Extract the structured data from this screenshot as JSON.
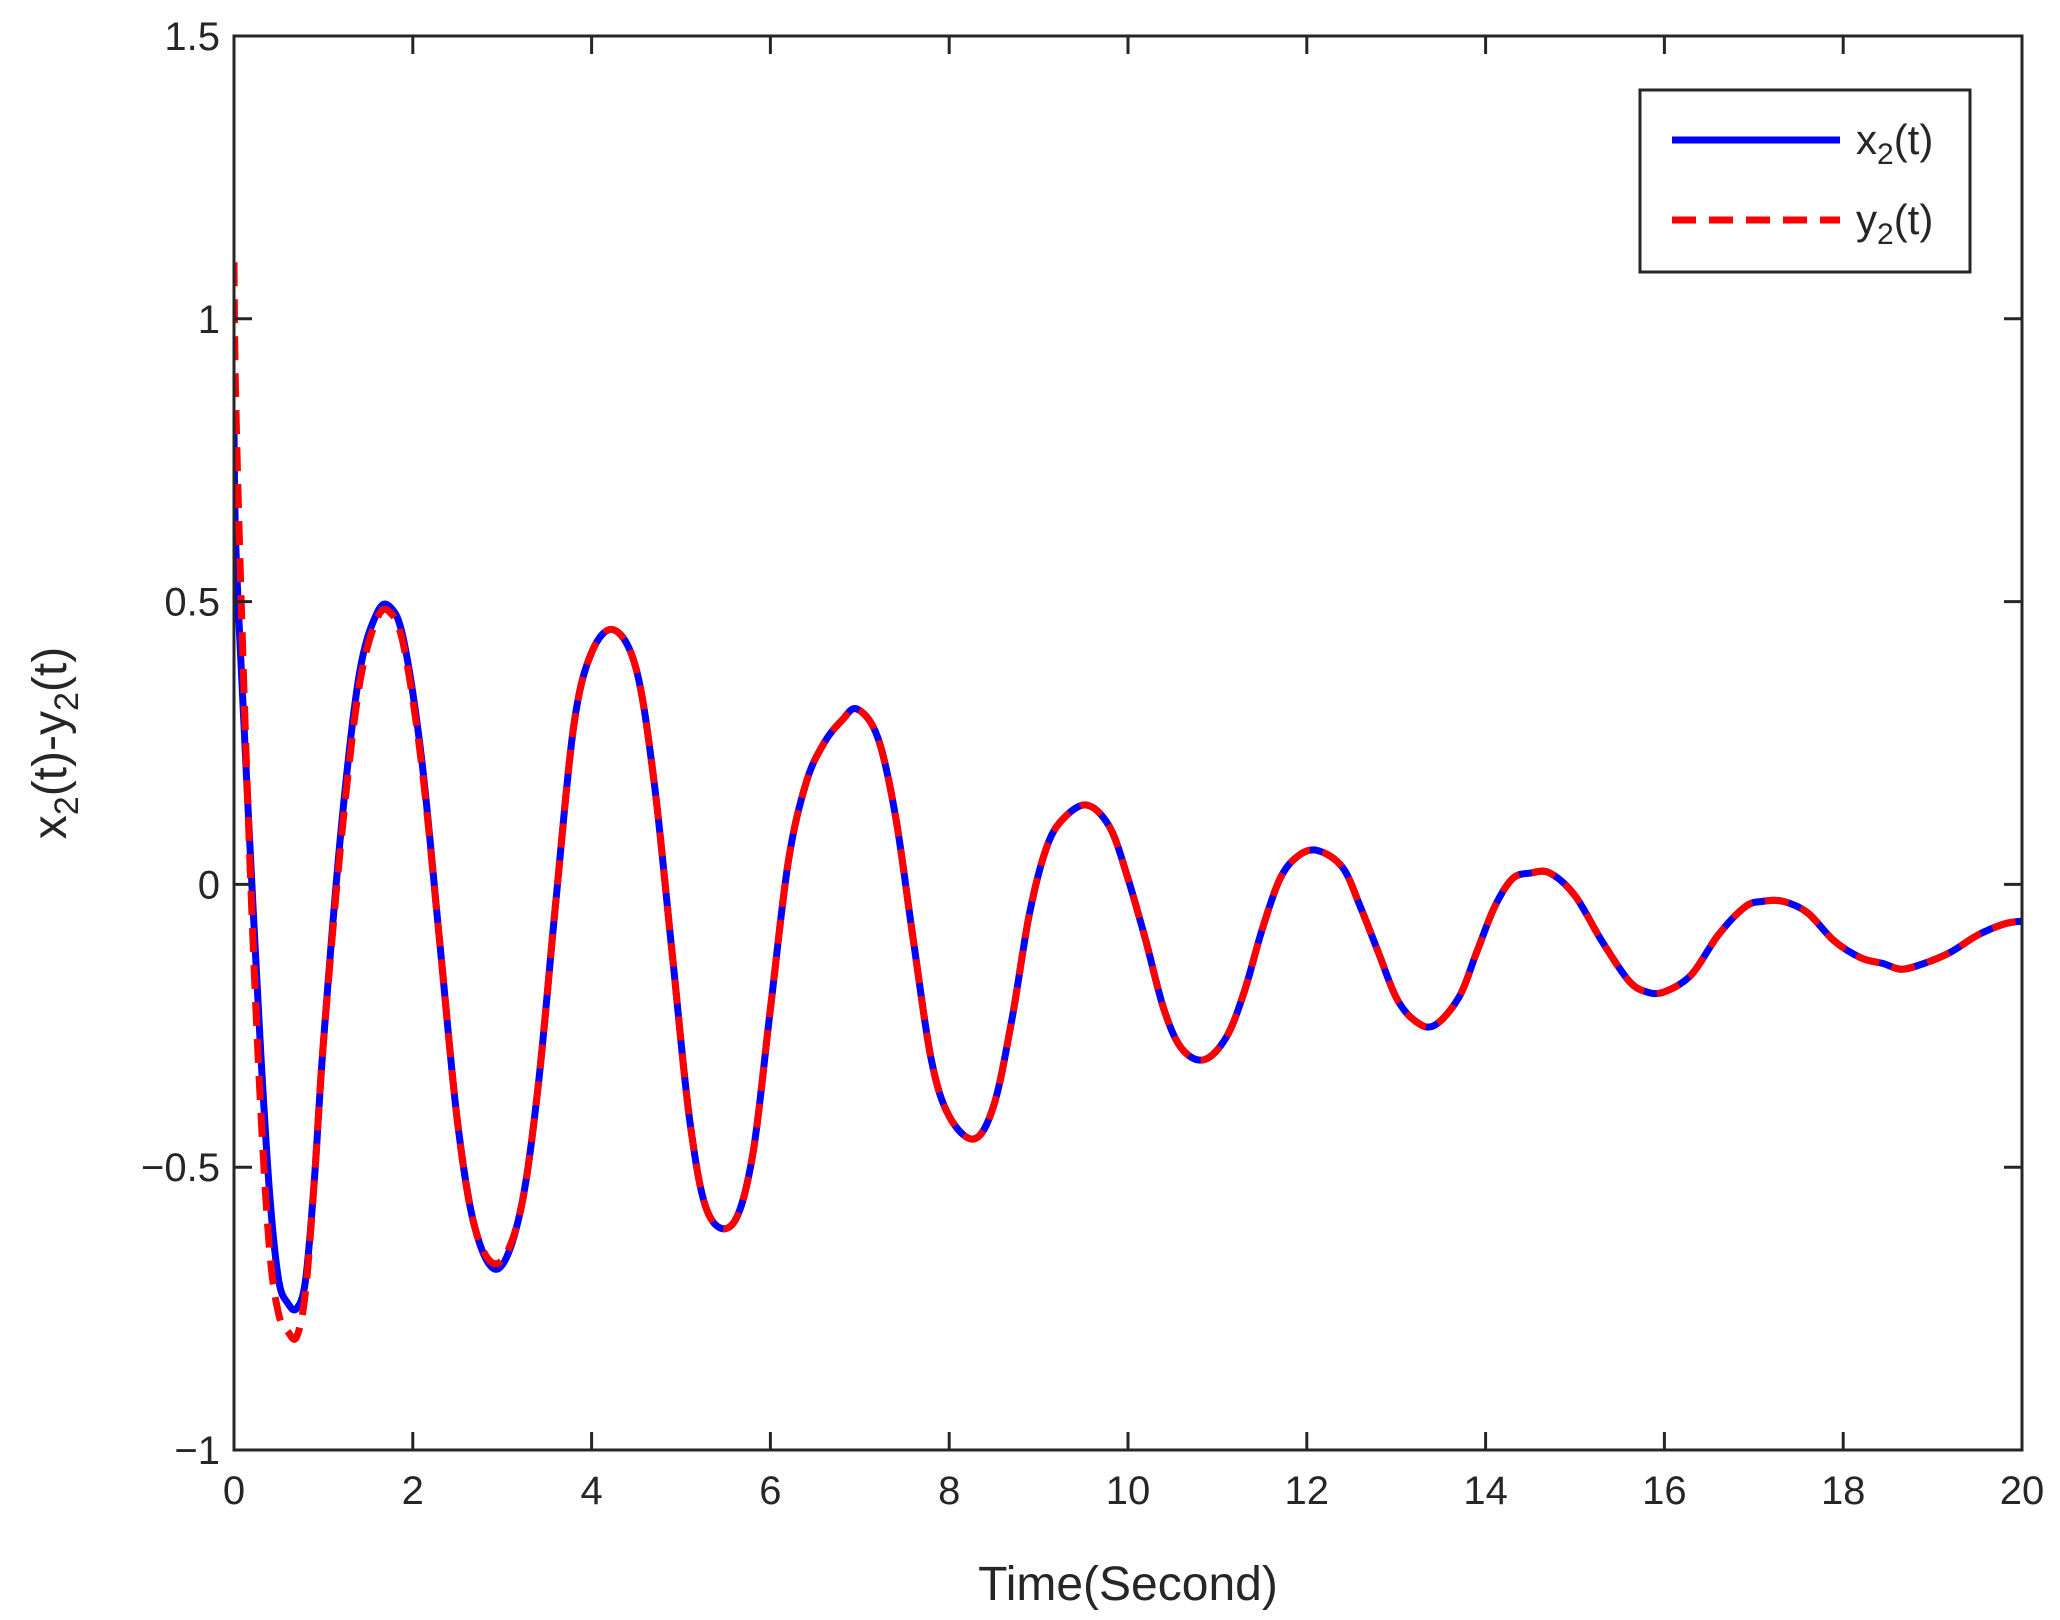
{
  "chart_data": {
    "type": "line",
    "title": "",
    "xlabel": "Time(Second)",
    "ylabel": {
      "base": "x",
      "sub1": "2",
      "mid": "(t)-y",
      "sub2": "2",
      "tail": "(t)"
    },
    "xlim": [
      0,
      20
    ],
    "ylim": [
      -1,
      1.5
    ],
    "xticks": [
      "0",
      "2",
      "4",
      "6",
      "8",
      "10",
      "12",
      "14",
      "16",
      "18",
      "20"
    ],
    "yticks": [
      "−1",
      "−0.5",
      "0",
      "0.5",
      "1",
      "1.5"
    ],
    "grid": false,
    "legend_position": "top-right",
    "series": [
      {
        "name": {
          "base": "x",
          "sub": "2",
          "tail": "(t)"
        },
        "color": "#0000ff",
        "style": "solid",
        "x": [
          0,
          0.02,
          0.1,
          0.2,
          0.3,
          0.4,
          0.5,
          0.6,
          0.7,
          0.8,
          0.9,
          1.0,
          1.2,
          1.4,
          1.6,
          1.75,
          1.9,
          2.1,
          2.3,
          2.5,
          2.7,
          2.95,
          3.2,
          3.4,
          3.6,
          3.8,
          4.0,
          4.25,
          4.5,
          4.7,
          4.9,
          5.1,
          5.3,
          5.58,
          5.8,
          6.0,
          6.2,
          6.4,
          6.6,
          6.8,
          6.97,
          7.2,
          7.4,
          7.6,
          7.8,
          8.0,
          8.28,
          8.5,
          8.7,
          8.9,
          9.1,
          9.3,
          9.55,
          9.8,
          10.0,
          10.2,
          10.4,
          10.6,
          10.85,
          11.1,
          11.3,
          11.5,
          11.7,
          11.9,
          12.12,
          12.4,
          12.6,
          12.8,
          13.0,
          13.2,
          13.42,
          13.7,
          13.9,
          14.1,
          14.3,
          14.5,
          14.72,
          15.0,
          15.3,
          15.6,
          15.8,
          16.0,
          16.3,
          16.6,
          16.9,
          17.1,
          17.33,
          17.6,
          17.9,
          18.2,
          18.45,
          18.65,
          18.9,
          19.2,
          19.5,
          19.8,
          20.0
        ],
        "y": [
          0.8,
          0.6,
          0.32,
          0.0,
          -0.3,
          -0.55,
          -0.7,
          -0.74,
          -0.75,
          -0.7,
          -0.52,
          -0.28,
          0.1,
          0.37,
          0.48,
          0.49,
          0.43,
          0.22,
          -0.1,
          -0.42,
          -0.61,
          -0.68,
          -0.58,
          -0.36,
          -0.03,
          0.28,
          0.41,
          0.45,
          0.38,
          0.18,
          -0.12,
          -0.42,
          -0.58,
          -0.6,
          -0.48,
          -0.22,
          0.04,
          0.18,
          0.25,
          0.29,
          0.31,
          0.26,
          0.12,
          -0.1,
          -0.31,
          -0.41,
          -0.45,
          -0.39,
          -0.24,
          -0.05,
          0.07,
          0.12,
          0.14,
          0.1,
          0.01,
          -0.1,
          -0.22,
          -0.29,
          -0.31,
          -0.27,
          -0.19,
          -0.08,
          0.01,
          0.05,
          0.06,
          0.03,
          -0.04,
          -0.12,
          -0.2,
          -0.24,
          -0.25,
          -0.2,
          -0.12,
          -0.04,
          0.01,
          0.02,
          0.02,
          -0.02,
          -0.1,
          -0.17,
          -0.19,
          -0.19,
          -0.16,
          -0.09,
          -0.04,
          -0.03,
          -0.03,
          -0.05,
          -0.1,
          -0.13,
          -0.14,
          -0.15,
          -0.14,
          -0.12,
          -0.09,
          -0.07,
          -0.065
        ]
      },
      {
        "name": {
          "base": "y",
          "sub": "2",
          "tail": "(t)"
        },
        "color": "#ff0000",
        "style": "dashed",
        "x": [
          0,
          0.02,
          0.1,
          0.2,
          0.3,
          0.4,
          0.5,
          0.6,
          0.7,
          0.8,
          0.9,
          1.0,
          1.2,
          1.4,
          1.6,
          1.75,
          1.9,
          2.1,
          2.3,
          2.5,
          2.7,
          2.95,
          3.2,
          3.4,
          3.6,
          3.8,
          4.0,
          4.25,
          4.5,
          4.7,
          4.9,
          5.1,
          5.3,
          5.58,
          5.8,
          6.0,
          6.2,
          6.4,
          6.6,
          6.8,
          6.97,
          7.2,
          7.4,
          7.6,
          7.8,
          8.0,
          8.28,
          8.5,
          8.7,
          8.9,
          9.1,
          9.3,
          9.55,
          9.8,
          10.0,
          10.2,
          10.4,
          10.6,
          10.85,
          11.1,
          11.3,
          11.5,
          11.7,
          11.9,
          12.12,
          12.4,
          12.6,
          12.8,
          13.0,
          13.2,
          13.42,
          13.7,
          13.9,
          14.1,
          14.3,
          14.5,
          14.72,
          15.0,
          15.3,
          15.6,
          15.8,
          16.0,
          16.3,
          16.6,
          16.9,
          17.1,
          17.33,
          17.6,
          17.9,
          18.2,
          18.45,
          18.65,
          18.9,
          19.2,
          19.5,
          19.8,
          20.0
        ],
        "y": [
          1.1,
          0.85,
          0.4,
          -0.05,
          -0.4,
          -0.65,
          -0.76,
          -0.79,
          -0.8,
          -0.72,
          -0.52,
          -0.28,
          0.08,
          0.35,
          0.47,
          0.48,
          0.42,
          0.21,
          -0.1,
          -0.42,
          -0.61,
          -0.67,
          -0.58,
          -0.36,
          -0.03,
          0.28,
          0.41,
          0.45,
          0.38,
          0.18,
          -0.12,
          -0.42,
          -0.58,
          -0.6,
          -0.48,
          -0.22,
          0.04,
          0.18,
          0.25,
          0.29,
          0.31,
          0.26,
          0.12,
          -0.1,
          -0.31,
          -0.41,
          -0.45,
          -0.39,
          -0.24,
          -0.05,
          0.07,
          0.12,
          0.14,
          0.1,
          0.01,
          -0.1,
          -0.22,
          -0.29,
          -0.31,
          -0.27,
          -0.19,
          -0.08,
          0.01,
          0.05,
          0.06,
          0.03,
          -0.04,
          -0.12,
          -0.2,
          -0.24,
          -0.25,
          -0.2,
          -0.12,
          -0.04,
          0.01,
          0.02,
          0.02,
          -0.02,
          -0.1,
          -0.17,
          -0.19,
          -0.19,
          -0.16,
          -0.09,
          -0.04,
          -0.03,
          -0.03,
          -0.05,
          -0.1,
          -0.13,
          -0.14,
          -0.15,
          -0.14,
          -0.12,
          -0.09,
          -0.07,
          -0.065
        ]
      }
    ]
  }
}
